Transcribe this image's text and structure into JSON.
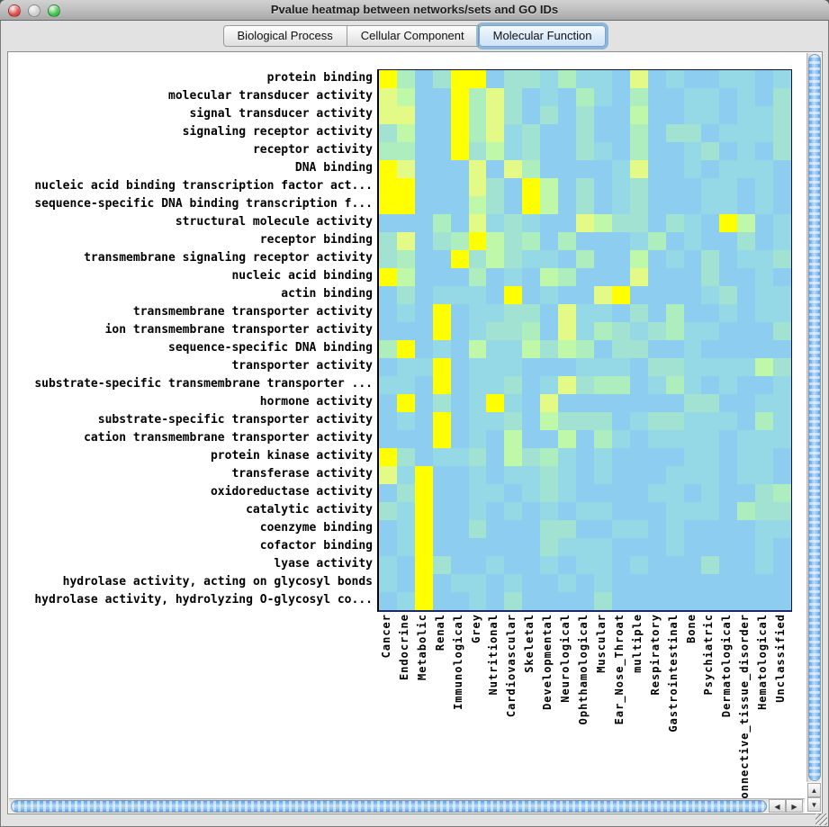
{
  "window": {
    "title": "Pvalue heatmap between networks/sets and GO IDs",
    "traffic_lights": [
      {
        "name": "close-button",
        "color": "#df4744"
      },
      {
        "name": "minimize-button",
        "color": "#cfcfcf"
      },
      {
        "name": "zoom-button",
        "color": "#3ac148"
      }
    ]
  },
  "tabs": [
    {
      "label": "Biological Process",
      "selected": false
    },
    {
      "label": "Cellular Component",
      "selected": false
    },
    {
      "label": "Molecular Function",
      "selected": true
    }
  ],
  "scrollbars": {
    "up_icon": "▲",
    "down_icon": "▼",
    "left_icon": "◀",
    "right_icon": "▶"
  },
  "chart_data": {
    "type": "heatmap",
    "title": "Pvalue heatmap between networks/sets and GO IDs",
    "legend_position": "none",
    "grid": false,
    "value_scale": "quantized p-value significance, 0 = low (blue) to 6 = high (yellow)",
    "rows": [
      "protein binding",
      "molecular transducer activity",
      "signal transducer activity",
      "signaling receptor activity",
      "receptor activity",
      "DNA binding",
      "nucleic acid binding transcription factor act...",
      "sequence-specific DNA binding transcription f...",
      "structural molecule activity",
      "receptor binding",
      "transmembrane signaling receptor activity",
      "nucleic acid binding",
      "actin binding",
      "transmembrane transporter activity",
      "ion transmembrane transporter activity",
      "sequence-specific DNA binding",
      "transporter activity",
      "substrate-specific transmembrane transporter ...",
      "hormone activity",
      "substrate-specific transporter activity",
      "cation transmembrane transporter activity",
      "protein kinase activity",
      "transferase activity",
      "oxidoreductase activity",
      "catalytic activity",
      "coenzyme binding",
      "cofactor binding",
      "lyase activity",
      "hydrolase activity, acting on glycosyl bonds",
      "hydrolase activity, hydrolyzing O-glycosyl co..."
    ],
    "columns": [
      "Cancer",
      "Endocrine",
      "Metabolic",
      "Renal",
      "Immunological",
      "Grey",
      "Nutritional",
      "Cardiovascular",
      "Skeletal",
      "Developmental",
      "Neurological",
      "Ophthamological",
      "Muscular",
      "Ear_Nose_Throat",
      "multiple",
      "Respiratory",
      "Gastrointestinal",
      "Bone",
      "Psychiatric",
      "Dermatological",
      "Connective_tissue_disorder",
      "Hematological",
      "Unclassified"
    ],
    "palette": [
      "#8dcdf0",
      "#96d9e6",
      "#a2e2d2",
      "#aeedbd",
      "#c0f8aa",
      "#e4fa86",
      "#ffff00"
    ],
    "matrix": [
      "63026602213110501001101",
      "54006352010310300110102",
      "55006352020200400110112",
      "24006351200200302201112",
      "33006241200210300120102",
      "65000505300001500101110",
      "66000520640201200011010",
      "66000420640201200011010",
      "00030512100542202106401",
      "25023642303000130100201",
      "23006242110300401020112",
      "64000301043000500020010",
      "02011106010056000012011",
      "01060112205110203001011",
      "00060122305132123110002",
      "36010411424302200100000",
      "01160111000111022111142",
      "11060112015233013101001",
      "06020161050000000220011",
      "01060112042220122111031",
      "00060104004031011110111",
      "62011204231010000110110",
      "51600101121010001110110",
      "02600110121000011010023",
      "21600101010110001110322",
      "01600200022001101000011",
      "01600000021110001000010",
      "10620010010110100020010",
      "10601101001010000000000",
      "01600102000020000000000"
    ]
  }
}
